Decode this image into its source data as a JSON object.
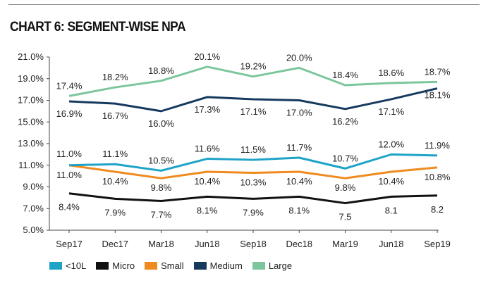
{
  "title": "CHART 6: SEGMENT-WISE NPA",
  "chart_data": {
    "type": "line",
    "title": "CHART 6: SEGMENT-WISE NPA",
    "categories": [
      "Sep17",
      "Dec17",
      "Mar18",
      "Jun18",
      "Sep18",
      "Dec18",
      "Mar19",
      "Jun18",
      "Sep19"
    ],
    "y_ticks": [
      "5.0%",
      "7.0%",
      "9.0%",
      "11.0%",
      "13.0%",
      "15.0%",
      "17.0%",
      "19.0%",
      "21.0%"
    ],
    "ylim": [
      5,
      21
    ],
    "grid": false,
    "legend_position": "bottom-left",
    "series": [
      {
        "name": "<10L",
        "color": "#1ea3c7",
        "values": [
          11.0,
          11.1,
          10.5,
          11.6,
          11.5,
          11.7,
          10.7,
          12.0,
          11.9
        ],
        "labels": [
          "11.0%",
          "11.1%",
          "10.5%",
          "11.6%",
          "11.5%",
          "11.7%",
          "10.7%",
          "12.0%",
          "11.9%"
        ]
      },
      {
        "name": "Micro",
        "color": "#111111",
        "values": [
          8.4,
          7.9,
          7.7,
          8.1,
          7.9,
          8.1,
          7.5,
          8.1,
          8.2
        ],
        "labels": [
          "8.4%",
          "7.9%",
          "7.7%",
          "8.1%",
          "7.9%",
          "8.1%",
          "7.5",
          "8.1",
          "8.2"
        ]
      },
      {
        "name": "Small",
        "color": "#ef8a1e",
        "values": [
          11.0,
          10.4,
          9.8,
          10.4,
          10.3,
          10.4,
          9.8,
          10.4,
          10.8
        ],
        "labels": [
          "11.0%",
          "10.4%",
          "9.8%",
          "10.4%",
          "10.3%",
          "10.4%",
          "9.8%",
          "10.4%",
          "10.8%"
        ]
      },
      {
        "name": "Medium",
        "color": "#163a5e",
        "values": [
          16.9,
          16.7,
          16.0,
          17.3,
          17.1,
          17.0,
          16.2,
          17.1,
          18.1
        ],
        "labels": [
          "16.9%",
          "16.7%",
          "16.0%",
          "17.3%",
          "17.1%",
          "17.0%",
          "16.2%",
          "17.1%",
          "18.1%"
        ]
      },
      {
        "name": "Large",
        "color": "#7cc69d",
        "values": [
          17.4,
          18.2,
          18.8,
          20.1,
          19.2,
          20.0,
          18.4,
          18.6,
          18.7
        ],
        "labels": [
          "17.4%",
          "18.2%",
          "18.8%",
          "20.1%",
          "19.2%",
          "20.0%",
          "18.4%",
          "18.6%",
          "18.7%"
        ]
      }
    ]
  }
}
